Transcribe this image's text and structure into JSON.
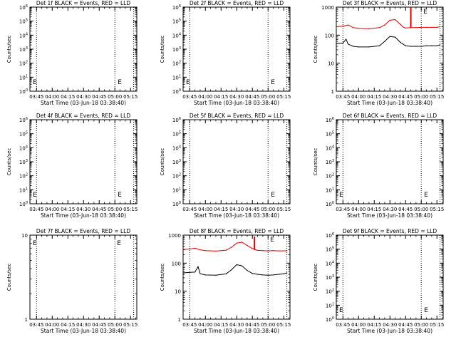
{
  "common": {
    "xticks": [
      "03:45",
      "04:00",
      "04:15",
      "04:30",
      "04:45",
      "05:00",
      "05:15"
    ],
    "xlabel": "Start Time (03-Jun-18 03:38:40)",
    "ylabel": "Counts/sec",
    "colors": {
      "events": "#000000",
      "lld": "#e00000",
      "axes": "#000000"
    }
  },
  "chart_data": [
    {
      "type": "line",
      "title": "Det 1f BLACK = Events, RED = LLD",
      "xlim": [
        "03:38:40",
        "05:21:00"
      ],
      "ylim": [
        1,
        1000000
      ],
      "yscale": "log",
      "yticks": [
        "10^0",
        "10^1",
        "10^2",
        "10^3",
        "10^4",
        "10^5",
        "10^6"
      ],
      "markers": [
        "E",
        "E"
      ],
      "dotted_lines_at": [
        "03:45",
        "05:00",
        "05:18"
      ],
      "series": []
    },
    {
      "type": "line",
      "title": "Det 2f BLACK = Events, RED = LLD",
      "xlim": [
        "03:38:40",
        "05:21:00"
      ],
      "ylim": [
        1,
        1000000
      ],
      "yscale": "log",
      "yticks": [
        "10^0",
        "10^1",
        "10^2",
        "10^3",
        "10^4",
        "10^5",
        "10^6"
      ],
      "markers": [
        "E",
        "E"
      ],
      "dotted_lines_at": [
        "03:45",
        "05:00",
        "05:18"
      ],
      "series": []
    },
    {
      "type": "line",
      "title": "Det 3f BLACK = Events, RED = LLD",
      "xlim": [
        "03:38:40",
        "05:21:00"
      ],
      "ylim": [
        1,
        1000
      ],
      "yscale": "log",
      "yticks": [
        "1",
        "10",
        "100",
        "1000"
      ],
      "markers": [
        "E"
      ],
      "dotted_lines_at": [
        "03:45",
        "05:00",
        "05:18"
      ],
      "series": [
        {
          "name": "LLD",
          "color": "#e00000",
          "x": [
            "03:38:40",
            "03:45",
            "03:50",
            "03:55",
            "04:00",
            "04:10",
            "04:20",
            "04:25",
            "04:30",
            "04:35",
            "04:40",
            "04:43",
            "04:45",
            "04:50",
            "04:55",
            "05:00",
            "05:05",
            "05:10",
            "05:15",
            "05:18"
          ],
          "y": [
            200,
            210,
            230,
            185,
            175,
            170,
            185,
            230,
            340,
            360,
            240,
            190,
            180,
            185,
            185,
            190,
            190,
            190,
            190,
            200
          ]
        },
        {
          "name": "Events",
          "color": "#000000",
          "x": [
            "03:38:40",
            "03:45",
            "03:48",
            "03:50",
            "03:55",
            "04:00",
            "04:10",
            "04:20",
            "04:25",
            "04:30",
            "04:35",
            "04:40",
            "04:45",
            "04:50",
            "04:55",
            "05:00",
            "05:05",
            "05:10",
            "05:15",
            "05:18"
          ],
          "y": [
            50,
            52,
            72,
            48,
            40,
            38,
            38,
            42,
            60,
            90,
            85,
            55,
            42,
            40,
            40,
            40,
            42,
            42,
            42,
            45
          ]
        }
      ]
    },
    {
      "type": "line",
      "title": "Det 4f BLACK = Events, RED = LLD",
      "xlim": [
        "03:38:40",
        "05:21:00"
      ],
      "ylim": [
        1,
        1000000
      ],
      "yscale": "log",
      "yticks": [
        "10^0",
        "10^1",
        "10^2",
        "10^3",
        "10^4",
        "10^5",
        "10^6"
      ],
      "markers": [
        "E",
        "E"
      ],
      "dotted_lines_at": [
        "03:45",
        "05:00",
        "05:18"
      ],
      "series": []
    },
    {
      "type": "line",
      "title": "Det 5f BLACK = Events, RED = LLD",
      "xlim": [
        "03:38:40",
        "05:21:00"
      ],
      "ylim": [
        1,
        1000000
      ],
      "yscale": "log",
      "yticks": [
        "10^0",
        "10^1",
        "10^2",
        "10^3",
        "10^4",
        "10^5",
        "10^6"
      ],
      "markers": [
        "E"
      ],
      "dotted_lines_at": [
        "03:45",
        "05:00",
        "05:18"
      ],
      "series": []
    },
    {
      "type": "line",
      "title": "Det 6f BLACK = Events, RED = LLD",
      "xlim": [
        "03:38:40",
        "05:21:00"
      ],
      "ylim": [
        1,
        1000000
      ],
      "yscale": "log",
      "yticks": [
        "10^0",
        "10^1",
        "10^2",
        "10^3",
        "10^4",
        "10^5",
        "10^6"
      ],
      "markers": [
        "E",
        "E"
      ],
      "dotted_lines_at": [
        "03:45",
        "05:00",
        "05:18"
      ],
      "series": []
    },
    {
      "type": "line",
      "title": "Det 7f BLACK = Events, RED = LLD",
      "xlim": [
        "03:38:40",
        "05:21:00"
      ],
      "ylim": [
        1,
        10
      ],
      "yscale": "log",
      "yticks": [
        "1",
        "10"
      ],
      "markers": [
        "E",
        "E"
      ],
      "dotted_lines_at": [
        "03:45",
        "05:00",
        "05:18"
      ],
      "series": []
    },
    {
      "type": "line",
      "title": "Det 8f BLACK = Events, RED = LLD",
      "xlim": [
        "03:38:40",
        "05:21:00"
      ],
      "ylim": [
        1,
        1000
      ],
      "yscale": "log",
      "yticks": [
        "1",
        "10",
        "100",
        "1000"
      ],
      "markers": [
        "E"
      ],
      "dotted_lines_at": [
        "03:45",
        "05:00",
        "05:18"
      ],
      "series": [
        {
          "name": "LLD",
          "color": "#e00000",
          "x": [
            "03:38:40",
            "03:45",
            "03:50",
            "03:55",
            "04:00",
            "04:10",
            "04:20",
            "04:25",
            "04:30",
            "04:35",
            "04:40",
            "04:45",
            "04:48",
            "04:50",
            "04:55",
            "05:00",
            "05:05",
            "05:10",
            "05:15",
            "05:18"
          ],
          "y": [
            310,
            320,
            340,
            300,
            280,
            270,
            290,
            370,
            520,
            560,
            430,
            330,
            300,
            285,
            280,
            275,
            280,
            275,
            275,
            280
          ]
        },
        {
          "name": "Events",
          "color": "#000000",
          "x": [
            "03:38:40",
            "03:45",
            "03:50",
            "03:53",
            "03:55",
            "04:00",
            "04:10",
            "04:20",
            "04:25",
            "04:30",
            "04:35",
            "04:40",
            "04:45",
            "04:50",
            "04:55",
            "05:00",
            "05:05",
            "05:10",
            "05:15",
            "05:18"
          ],
          "y": [
            45,
            47,
            48,
            75,
            42,
            38,
            37,
            42,
            58,
            88,
            80,
            55,
            43,
            40,
            38,
            37,
            38,
            40,
            42,
            45
          ]
        }
      ]
    },
    {
      "type": "line",
      "title": "Det 9f BLACK = Events, RED = LLD",
      "xlim": [
        "03:38:40",
        "05:21:00"
      ],
      "ylim": [
        1,
        1000000
      ],
      "yscale": "log",
      "yticks": [
        "10^0",
        "10^1",
        "10^2",
        "10^3",
        "10^4",
        "10^5",
        "10^6"
      ],
      "markers": [
        "E",
        "E"
      ],
      "dotted_lines_at": [
        "03:45",
        "05:00",
        "05:18"
      ],
      "series": []
    }
  ]
}
